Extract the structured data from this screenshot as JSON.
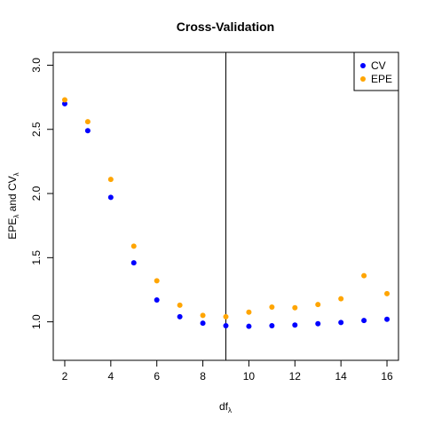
{
  "chart_data": {
    "type": "scatter",
    "title": "Cross-Validation",
    "xlabel": {
      "main": "df",
      "sub": "λ"
    },
    "ylabel": {
      "main1": "EPE",
      "sub1": "λ",
      "mid": " and CV",
      "sub2": "λ"
    },
    "xlim": [
      1.5,
      16.5
    ],
    "ylim": [
      0.7,
      3.1
    ],
    "xticks": [
      2,
      4,
      6,
      8,
      10,
      12,
      14,
      16
    ],
    "yticks": [
      1.0,
      1.5,
      2.0,
      2.5,
      3.0
    ],
    "ytick_labels": [
      "1.0",
      "1.5",
      "2.0",
      "2.5",
      "3.0"
    ],
    "vline": 9,
    "legend_position": "top-right",
    "x": [
      2,
      3,
      4,
      5,
      6,
      7,
      8,
      9,
      10,
      11,
      12,
      13,
      14,
      15,
      16
    ],
    "series": [
      {
        "name": "CV",
        "color": "#0000ff",
        "values": [
          2.7,
          2.49,
          1.97,
          1.46,
          1.17,
          1.04,
          0.99,
          0.97,
          0.965,
          0.97,
          0.975,
          0.985,
          0.995,
          1.01,
          1.02
        ]
      },
      {
        "name": "EPE",
        "color": "#ffa500",
        "values": [
          2.73,
          2.56,
          2.11,
          1.59,
          1.32,
          1.13,
          1.05,
          1.04,
          1.075,
          1.115,
          1.11,
          1.135,
          1.18,
          1.36,
          1.22
        ]
      }
    ]
  }
}
